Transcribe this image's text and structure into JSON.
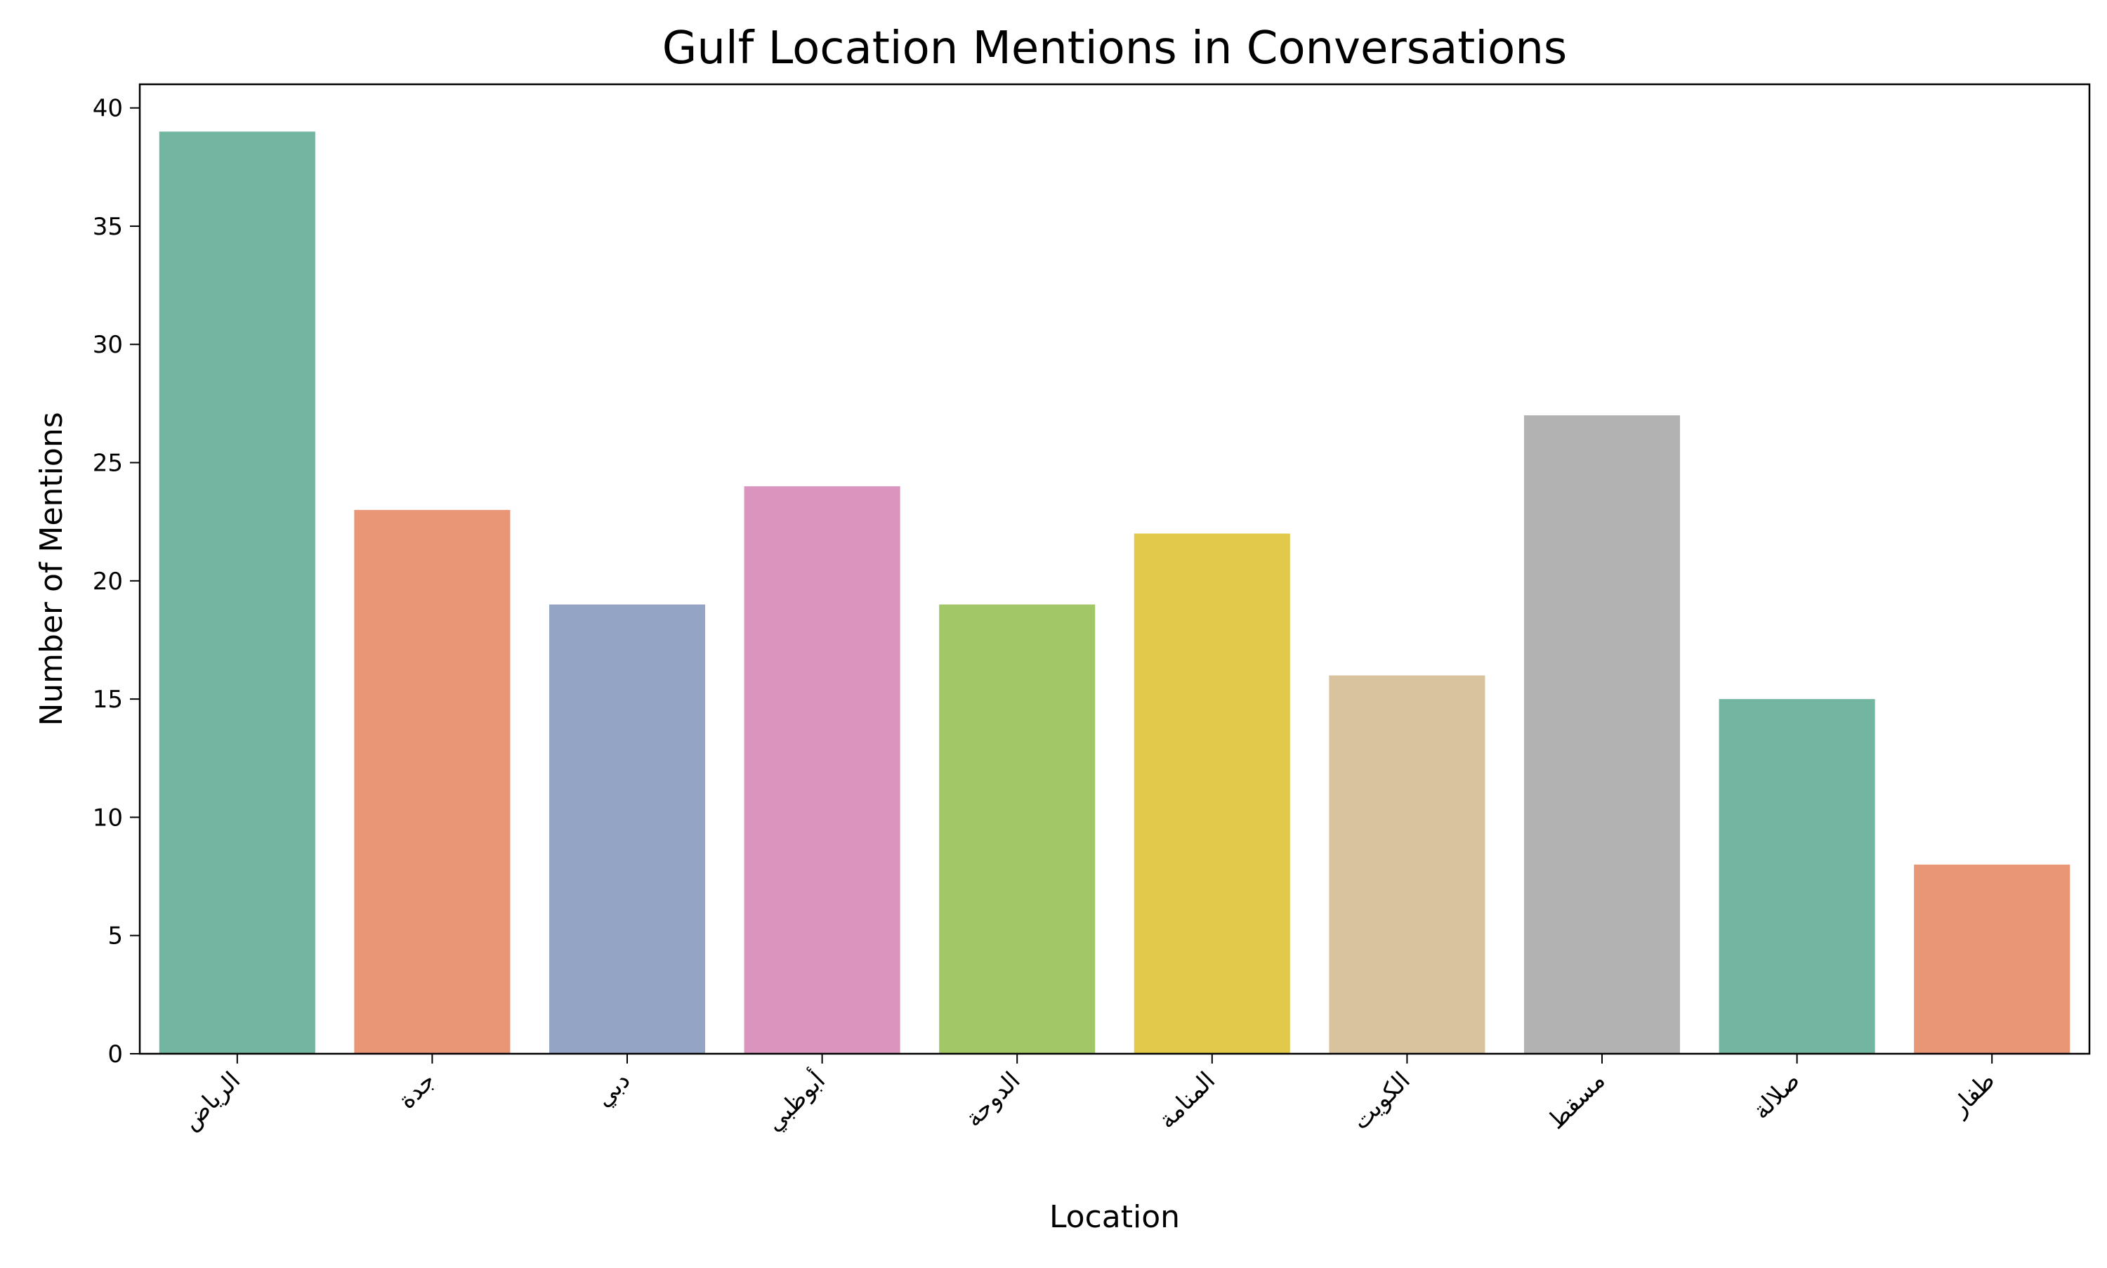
{
  "chart_data": {
    "type": "bar",
    "title": "Gulf Location Mentions in Conversations",
    "xlabel": "Location",
    "ylabel": "Number of Mentions",
    "categories": [
      "الرياض",
      "جدة",
      "دبي",
      "أبوظبي",
      "الدوحة",
      "المنامة",
      "الكويت",
      "مسقط",
      "صلالة",
      "طفار"
    ],
    "values": [
      39,
      23,
      19,
      24,
      19,
      22,
      16,
      27,
      15,
      8
    ],
    "colors": [
      "#72b5a0",
      "#e99677",
      "#94a4c4",
      "#da95bf",
      "#a1c766",
      "#e2c94b",
      "#d9c39f",
      "#b2b2b2",
      "#72b5a0",
      "#e99677"
    ],
    "ylim": [
      0,
      41
    ],
    "yticks": [
      0,
      5,
      10,
      15,
      20,
      25,
      30,
      35,
      40
    ],
    "grid": false,
    "legend": false
  }
}
